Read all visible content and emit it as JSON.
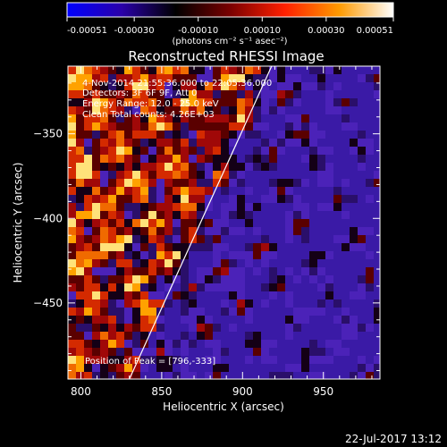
{
  "colorbar": {
    "min_label": "-0.00051",
    "tick_labels": [
      "-0.00051",
      "-0.00030",
      "-0.00010",
      "0.00010",
      "0.00030",
      "0.00051"
    ],
    "units_label": "(photons cm⁻² s⁻¹ asec⁻²)",
    "range": [
      -0.00051,
      0.00051
    ],
    "colors": [
      "#0000ff",
      "#2a00aa",
      "#000000",
      "#7a0000",
      "#ff2000",
      "#ff9a00",
      "#ffffff"
    ]
  },
  "chart_data": {
    "type": "heatmap",
    "title": "Reconstructed RHESSI Image",
    "xlabel": "Heliocentric X (arcsec)",
    "ylabel": "Heliocentric Y (arcsec)",
    "xlim": [
      792,
      985
    ],
    "ylim": [
      -495,
      -310
    ],
    "x_ticks": [
      800,
      850,
      900,
      950
    ],
    "y_ticks": [
      -350,
      -400,
      -450
    ],
    "x_tick_labels": [
      "800",
      "850",
      "900",
      "950"
    ],
    "y_tick_labels": [
      "−350",
      "−400",
      "−450"
    ],
    "annotations": [
      "4-Nov-2014 21:55:36.000 to 22:05:36.000",
      "Detectors: 3F 6F 9F, Att 0",
      "Energy Range: 12.0 - 25.0 keV",
      "Clean    Total counts: 4.26E+03"
    ],
    "peak_label": "Position of Peak = [796,-333]",
    "peak_position": [
      796,
      -333
    ],
    "limb_line": [
      [
        830,
        -495
      ],
      [
        918,
        -310
      ]
    ],
    "grid": false
  },
  "footer": {
    "timestamp": "22-Jul-2017 13:12"
  }
}
